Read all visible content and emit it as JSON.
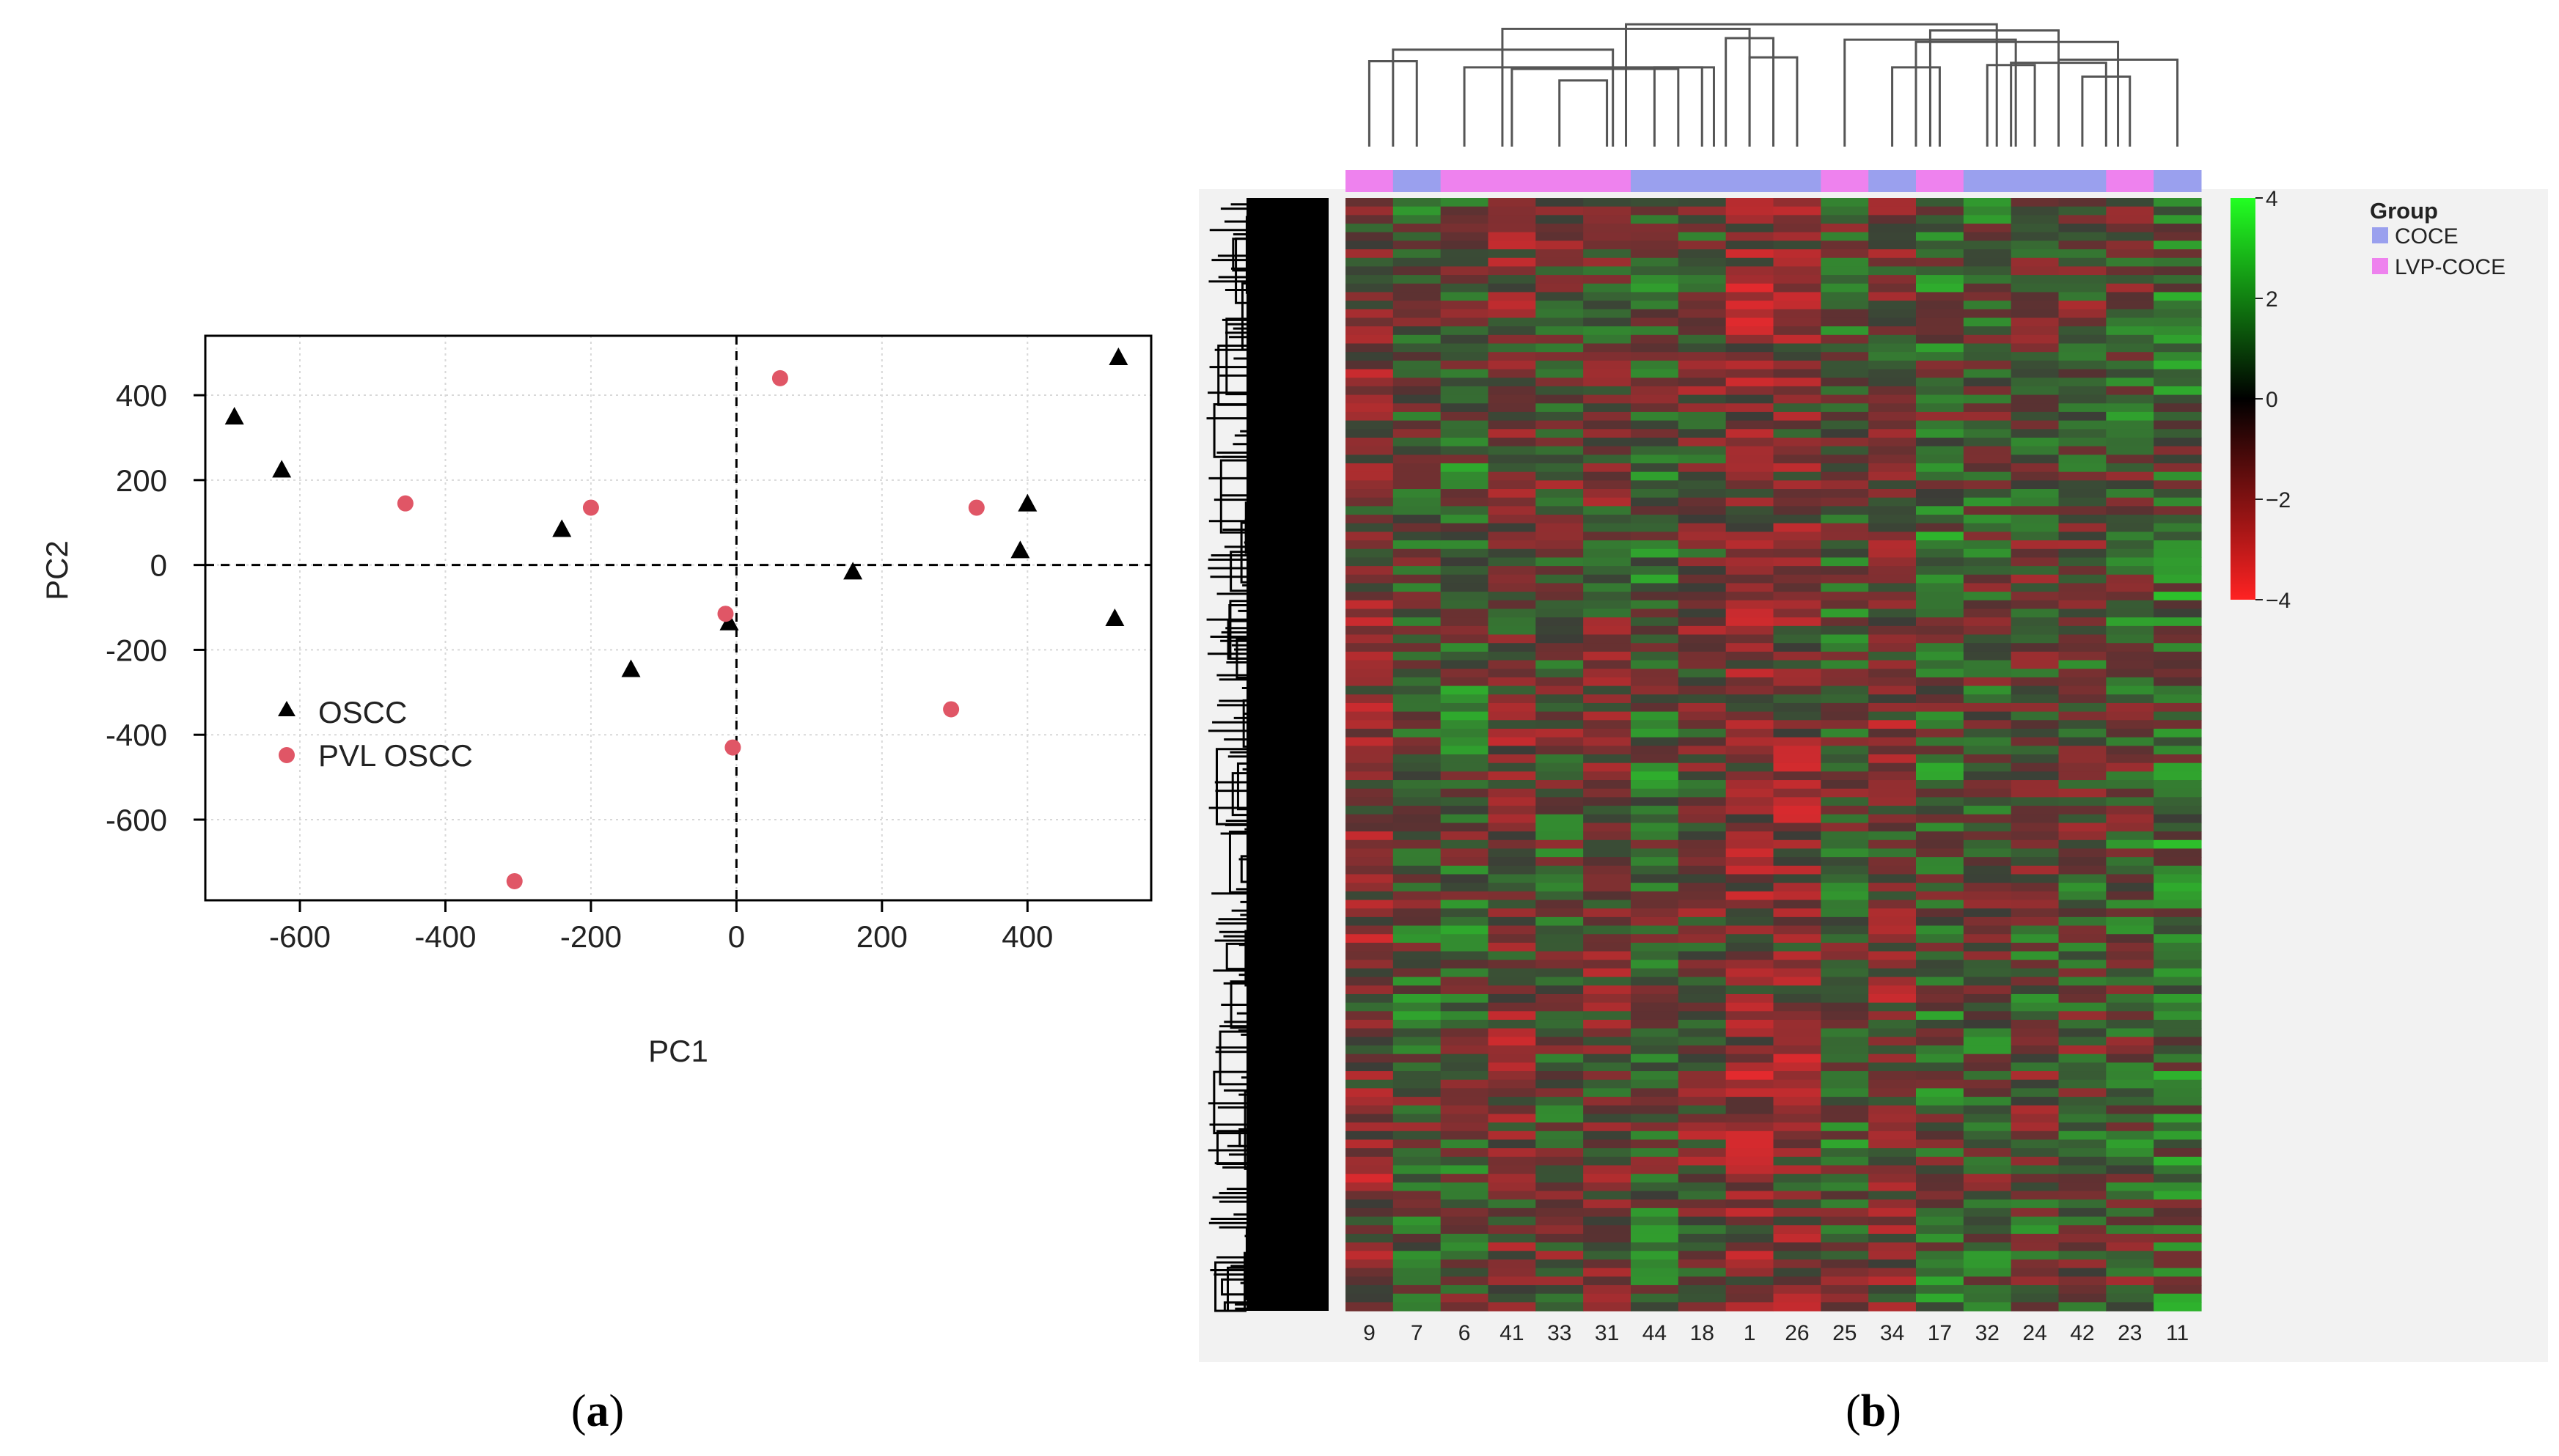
{
  "panels": {
    "a_label_open": "(",
    "a_label_letter": "a",
    "a_label_close": ")",
    "b_label_open": "(",
    "b_label_letter": "b",
    "b_label_close": ")"
  },
  "chart_data": [
    {
      "type": "scatter",
      "xlabel": "PC1",
      "ylabel": "PC2",
      "xlim": [
        -730,
        570
      ],
      "ylim": [
        -790,
        540
      ],
      "xticks": [
        -600,
        -400,
        -200,
        0,
        200,
        400
      ],
      "xtick_labels": [
        "-600",
        "-400",
        "-200",
        "0",
        "200",
        "400"
      ],
      "yticks": [
        400,
        200,
        0,
        -200,
        -400,
        -600
      ],
      "ytick_labels": [
        "400",
        "200",
        "0",
        "-200",
        "-400",
        "-600"
      ],
      "grid": true,
      "reference_lines": {
        "x": 0,
        "y": 0,
        "style": "dashed"
      },
      "legend_position": "left-center",
      "series": [
        {
          "name": "OSCC",
          "marker": "triangle",
          "color": "#000000",
          "points": [
            [
              -690,
              350
            ],
            [
              -625,
              225
            ],
            [
              -240,
              85
            ],
            [
              -145,
              -245
            ],
            [
              -10,
              -135
            ],
            [
              160,
              -15
            ],
            [
              390,
              35
            ],
            [
              400,
              145
            ],
            [
              520,
              -125
            ],
            [
              525,
              490
            ]
          ]
        },
        {
          "name": "PVL OSCC",
          "marker": "circle",
          "color": "#e05666",
          "points": [
            [
              -455,
              145
            ],
            [
              -200,
              135
            ],
            [
              -15,
              -115
            ],
            [
              -5,
              -430
            ],
            [
              60,
              440
            ],
            [
              -305,
              -745
            ],
            [
              295,
              -340
            ],
            [
              330,
              135
            ]
          ]
        }
      ]
    },
    {
      "type": "heatmap",
      "columns": [
        "9",
        "7",
        "6",
        "41",
        "33",
        "31",
        "44",
        "18",
        "1",
        "26",
        "25",
        "34",
        "17",
        "32",
        "24",
        "42",
        "23",
        "11"
      ],
      "column_groups": [
        "LVP-COCE",
        "COCE",
        "LVP-COCE",
        "LVP-COCE",
        "LVP-COCE",
        "LVP-COCE",
        "COCE",
        "COCE",
        "COCE",
        "COCE",
        "LVP-COCE",
        "COCE",
        "LVP-COCE",
        "COCE",
        "COCE",
        "COCE",
        "LVP-COCE",
        "COCE"
      ],
      "legend": {
        "title": "Group",
        "entries": [
          {
            "label": "COCE",
            "color": "#9aa0ee"
          },
          {
            "label": "LVP-COCE",
            "color": "#ee82ee"
          }
        ]
      },
      "colorbar": {
        "ticks": [
          "4",
          "2",
          "0",
          "−2",
          "−4"
        ],
        "range": [
          -4,
          4
        ],
        "colors": {
          "high": "#22ff22",
          "mid": "#000000",
          "low": "#ff2222"
        }
      },
      "row_dendrogram": true,
      "column_dendrogram": true
    }
  ]
}
